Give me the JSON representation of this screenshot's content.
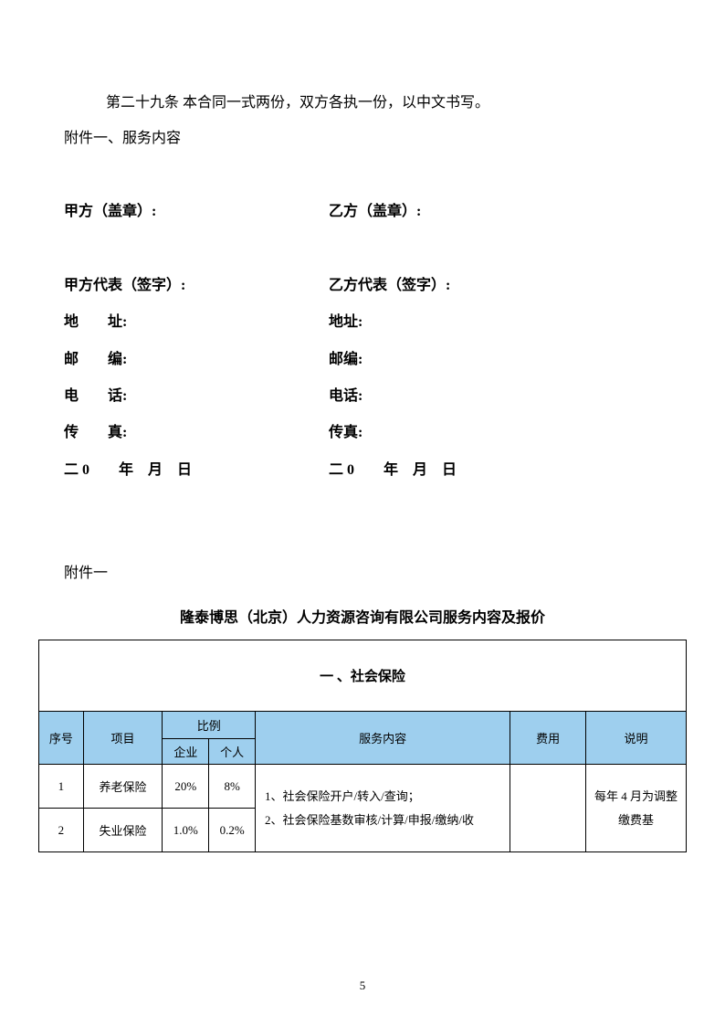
{
  "article29": "第二十九条 本合同一式两份，双方各执一份，以中文书写。",
  "appendix_intro": "附件一、服务内容",
  "sig": {
    "partyA_seal": "甲方（盖章）:",
    "partyB_seal": "乙方（盖章）:",
    "partyA_rep": "甲方代表（签字）:",
    "partyB_rep": "乙方代表（签字）:",
    "addrA": "地　　址:",
    "addrB": "地址:",
    "postA": "邮　　编:",
    "postB": "邮编:",
    "telA": "电　　话:",
    "telB": "电话:",
    "faxA": "传　　真:",
    "faxB": "传真:",
    "dateA": "二 0　　年　月　日",
    "dateB": "二 0　　年　月　日"
  },
  "appendix1_label": "附件一",
  "table_title": "隆泰博思（北京）人力资源咨询有限公司服务内容及报价",
  "table": {
    "section_header": "一 、社会保险",
    "col_headers": {
      "seq": "序号",
      "item": "项目",
      "ratio": "比例",
      "ratio_ent": "企业",
      "ratio_ind": "个人",
      "content": "服务内容",
      "fee": "费用",
      "desc": "说明"
    },
    "col_widths": {
      "seq": 46,
      "item": 82,
      "ent": 48,
      "ind": 48,
      "content": 264,
      "fee": 78,
      "desc": 104
    },
    "header_bg": "#9ecfee",
    "border_color": "#000000",
    "rows": [
      {
        "seq": "1",
        "item": "养老保险",
        "ent": "20%",
        "ind": "8%"
      },
      {
        "seq": "2",
        "item": "失业保险",
        "ent": "1.0%",
        "ind": "0.2%"
      }
    ],
    "service_lines": "1、社会保险开户/转入/查询；\n2、社会保险基数审核/计算/申报/缴纳/收",
    "desc_lines": "每年 4 月为调整 缴费基"
  },
  "page_number": "5"
}
